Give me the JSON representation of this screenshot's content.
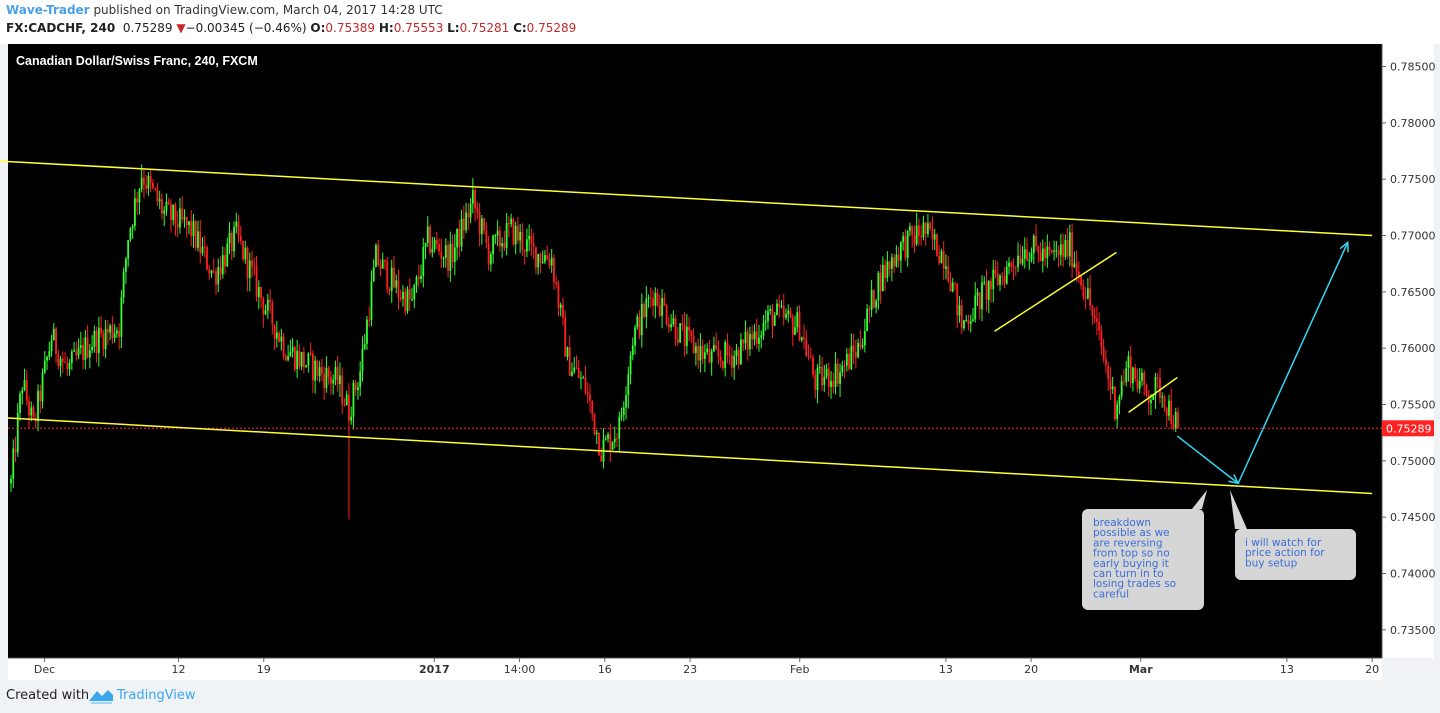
{
  "header": {
    "author": "Wave-Trader",
    "published_text": " published on TradingView.com, March 04, 2017 14:28 UTC",
    "symbol": "FX:CADCHF, 240",
    "last": "0.75289",
    "change_arrow": "▼",
    "change": "−0.00345 (−0.46%)",
    "o_label": "O:",
    "o_value": "0.75389",
    "h_label": "H:",
    "h_value": "0.75553",
    "l_label": "L:",
    "l_value": "0.75281",
    "c_label": "C:",
    "c_value": "0.75289"
  },
  "footer": {
    "created_with": "Created with",
    "brand": "TradingView"
  },
  "chart_data": {
    "type": "candlestick",
    "title": "Canadian Dollar/Swiss Franc, 240, FXCM",
    "ylim": [
      0.7325,
      0.787
    ],
    "y_ticks": [
      "0.78500",
      "0.78000",
      "0.77500",
      "0.77000",
      "0.76500",
      "0.76000",
      "0.75500",
      "0.75000",
      "0.74500",
      "0.74000",
      "0.73500"
    ],
    "y_tick_values": [
      0.785,
      0.78,
      0.775,
      0.77,
      0.765,
      0.76,
      0.755,
      0.75,
      0.745,
      0.74,
      0.735
    ],
    "x_ticks": [
      {
        "label": "Dec",
        "bold": false
      },
      {
        "label": "12",
        "bold": false
      },
      {
        "label": "19",
        "bold": false
      },
      {
        "label": "2017",
        "bold": true
      },
      {
        "label": "14:00",
        "bold": false
      },
      {
        "label": "16",
        "bold": false
      },
      {
        "label": "23",
        "bold": false
      },
      {
        "label": "Feb",
        "bold": false
      },
      {
        "label": "13",
        "bold": false
      },
      {
        "label": "20",
        "bold": false
      },
      {
        "label": "Mar",
        "bold": true
      },
      {
        "label": "13",
        "bold": false
      },
      {
        "label": "20",
        "bold": false
      }
    ],
    "last_price": "0.75289",
    "last_price_value": 0.75289,
    "path_points": [
      [
        0.748,
        0
      ],
      [
        0.757,
        5
      ],
      [
        0.753,
        10
      ],
      [
        0.761,
        18
      ],
      [
        0.758,
        25
      ],
      [
        0.7605,
        35
      ],
      [
        0.762,
        48
      ],
      [
        0.77,
        52
      ],
      [
        0.7755,
        58
      ],
      [
        0.772,
        68
      ],
      [
        0.7705,
        80
      ],
      [
        0.7665,
        90
      ],
      [
        0.77,
        100
      ],
      [
        0.764,
        112
      ],
      [
        0.76,
        122
      ],
      [
        0.7585,
        132
      ],
      [
        0.757,
        145
      ],
      [
        0.7545,
        150
      ],
      [
        0.758,
        155
      ],
      [
        0.768,
        162
      ],
      [
        0.765,
        172
      ],
      [
        0.764,
        178
      ],
      [
        0.7695,
        185
      ],
      [
        0.768,
        195
      ],
      [
        0.773,
        205
      ],
      [
        0.7685,
        212
      ],
      [
        0.7705,
        222
      ],
      [
        0.7685,
        232
      ],
      [
        0.768,
        240
      ],
      [
        0.759,
        247
      ],
      [
        0.7565,
        255
      ],
      [
        0.751,
        262
      ],
      [
        0.753,
        270
      ],
      [
        0.761,
        276
      ],
      [
        0.765,
        285
      ],
      [
        0.761,
        298
      ],
      [
        0.759,
        310
      ],
      [
        0.7595,
        322
      ],
      [
        0.763,
        338
      ],
      [
        0.762,
        350
      ],
      [
        0.757,
        357
      ],
      [
        0.758,
        368
      ],
      [
        0.76,
        376
      ],
      [
        0.766,
        385
      ],
      [
        0.769,
        395
      ],
      [
        0.7705,
        405
      ],
      [
        0.768,
        415
      ],
      [
        0.762,
        422
      ],
      [
        0.765,
        432
      ],
      [
        0.7665,
        440
      ],
      [
        0.769,
        450
      ],
      [
        0.768,
        462
      ],
      [
        0.769,
        470
      ],
      [
        0.7645,
        478
      ],
      [
        0.76,
        484
      ],
      [
        0.755,
        490
      ],
      [
        0.7585,
        496
      ],
      [
        0.756,
        504
      ],
      [
        0.7565,
        510
      ],
      [
        0.7529,
        518
      ]
    ],
    "trendlines": [
      {
        "name": "upper channel",
        "color": "#ffff33",
        "from": [
          "11-24",
          0.7768
        ],
        "to": [
          "03-20",
          0.77
        ]
      },
      {
        "name": "lower channel",
        "color": "#ffff33",
        "from": [
          "11-28",
          0.7538
        ],
        "to": [
          "03-20",
          0.7471
        ]
      },
      {
        "name": "rising support",
        "color": "#ffff33",
        "from": [
          "02-17",
          0.7615
        ],
        "to": [
          "02-27",
          0.7685
        ]
      },
      {
        "name": "small support",
        "color": "#ffff33",
        "from": [
          "02-28",
          0.7543
        ],
        "to": [
          "03-04",
          0.7574
        ]
      }
    ],
    "arrows": [
      {
        "name": "down projection",
        "color": "#33d6f5",
        "from": [
          "03-04",
          0.7522
        ],
        "to": [
          "03-09",
          0.748
        ]
      },
      {
        "name": "up projection",
        "color": "#33d6f5",
        "from": [
          "03-09",
          0.748
        ],
        "to": [
          "03-18",
          0.7694
        ]
      }
    ],
    "annotations": [
      {
        "text": "breakdown\npossible as we\nare reversing\nfrom top so no\nearly buying it\ncan turn in to\nlosing trades so\ncareful"
      },
      {
        "text": "i will watch for\nprice action for\nbuy setup"
      }
    ]
  },
  "colors": {
    "background": "#000000",
    "bull": "#33ff33",
    "bear": "#ff2222",
    "trendline": "#ffff33",
    "arrow": "#33d6f5",
    "price_line": "#ff2222",
    "note_bg": "#d6d6d6",
    "note_text": "#3b6fd8"
  }
}
